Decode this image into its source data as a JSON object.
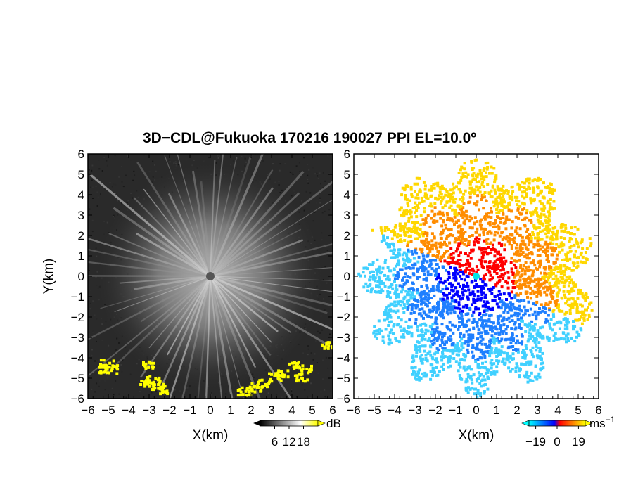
{
  "figure": {
    "title": "3D−CDL@Fukuoka 170216 190027 PPI EL=10.0º"
  },
  "chart_data": [
    {
      "type": "heatmap",
      "panel": "left",
      "description_kind": "radar backscatter intensity PPI (grayscale)",
      "xlabel": "X(km)",
      "ylabel": "Y(km)",
      "xlim": [
        -6,
        6
      ],
      "ylim": [
        -6,
        6
      ],
      "xticks": [
        "−6",
        "−5",
        "−4",
        "−3",
        "−2",
        "−1",
        "0",
        "1",
        "2",
        "3",
        "4",
        "5",
        "6"
      ],
      "yticks": [
        "6",
        "5",
        "4",
        "3",
        "2",
        "1",
        "0",
        "−1",
        "−2",
        "−3",
        "−4",
        "−5",
        "−6"
      ],
      "colorbar": {
        "unit": "dB",
        "ticks": [
          "6",
          "12",
          "18"
        ],
        "range": [
          0,
          24
        ],
        "colors": [
          "#000000",
          "#ffffff",
          "#ffff00"
        ]
      },
      "colors": {
        "background": "#2a2a2a",
        "center": "#555555",
        "clutter": "#ffff00"
      },
      "clutter": [
        {
          "x": -5.1,
          "y": -4.2,
          "size": 0.35
        },
        {
          "x": -4.9,
          "y": -4.5,
          "size": 0.35
        },
        {
          "x": -5.3,
          "y": -4.5,
          "size": 0.3
        },
        {
          "x": -3.1,
          "y": -4.3,
          "size": 0.3
        },
        {
          "x": -2.9,
          "y": -5.0,
          "size": 0.35
        },
        {
          "x": -2.6,
          "y": -5.3,
          "size": 0.35
        },
        {
          "x": -2.3,
          "y": -5.5,
          "size": 0.35
        },
        {
          "x": -3.2,
          "y": -5.2,
          "size": 0.3
        },
        {
          "x": 1.6,
          "y": -5.6,
          "size": 0.35
        },
        {
          "x": 2.1,
          "y": -5.4,
          "size": 0.35
        },
        {
          "x": 2.6,
          "y": -5.2,
          "size": 0.35
        },
        {
          "x": 3.1,
          "y": -4.9,
          "size": 0.35
        },
        {
          "x": 3.5,
          "y": -4.7,
          "size": 0.3
        },
        {
          "x": 4.0,
          "y": -4.3,
          "size": 0.3
        },
        {
          "x": 4.4,
          "y": -4.9,
          "size": 0.3
        },
        {
          "x": 4.6,
          "y": -4.5,
          "size": 0.3
        },
        {
          "x": 5.7,
          "y": -3.3,
          "size": 0.3
        }
      ]
    },
    {
      "type": "heatmap",
      "panel": "right",
      "description_kind": "radial (Doppler) velocity PPI",
      "xlabel": "X(km)",
      "ylabel": "",
      "xlim": [
        -6,
        6
      ],
      "ylim": [
        -6,
        6
      ],
      "xticks": [
        "−6",
        "−5",
        "−4",
        "−3",
        "−2",
        "−1",
        "0",
        "1",
        "2",
        "3",
        "4",
        "5",
        "6"
      ],
      "yticks": [
        "6",
        "5",
        "4",
        "3",
        "2",
        "1",
        "0",
        "−1",
        "−2",
        "−3",
        "−4",
        "−5",
        "−6"
      ],
      "colorbar": {
        "unit": "ms",
        "unit_exponent": "−1",
        "ticks": [
          "−19",
          "0",
          "19"
        ],
        "range": [
          -25,
          25
        ],
        "colors": [
          "#00ffff",
          "#0000ff",
          "#ff0000",
          "#ffff00"
        ]
      },
      "colors": {
        "center": "#00e5e5"
      },
      "regions": [
        {
          "name": "receding",
          "sign": "+",
          "colors": [
            "#ff0000",
            "#ff8c00",
            "#ffd700"
          ]
        },
        {
          "name": "approaching",
          "sign": "−",
          "colors": [
            "#0000ff",
            "#1e7fff",
            "#40d0ff"
          ]
        }
      ]
    }
  ]
}
